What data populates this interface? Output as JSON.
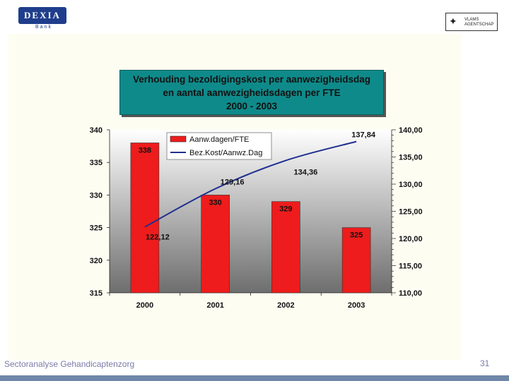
{
  "header": {
    "logo_left": "DEXIA",
    "logo_left_sub": "Bank",
    "logo_right_text": [
      "VLAMS",
      "AGENTSCHAP"
    ]
  },
  "title_lines": [
    "Verhouding bezoldigingskost per aanwezigheidsdag",
    "en aantal aanwezigheidsdagen per FTE",
    "2000 -  2003"
  ],
  "footer": {
    "text": "Sectoranalyse Gehandicaptenzorg",
    "page": "31"
  },
  "colors": {
    "bar": "#ee1c1c",
    "line": "#1f2f8f",
    "title_bg": "#0f8a8a",
    "plot_top": "#ffffff",
    "plot_bottom": "#6e6e6e"
  },
  "chart_data": {
    "type": "bar",
    "title": "Verhouding bezoldigingskost per aanwezigheidsdag en aantal aanwezigheidsdagen per FTE 2000 -  2003",
    "categories": [
      "2000",
      "2001",
      "2002",
      "2003"
    ],
    "series": [
      {
        "name": "Aanw.dagen/FTE",
        "type": "bar",
        "axis": "left",
        "values": [
          338,
          330,
          329,
          325
        ],
        "labels": [
          "338",
          "330",
          "329",
          "325"
        ]
      },
      {
        "name": "Bez.Kost/Aanwz.Dag",
        "type": "line",
        "axis": "right",
        "values": [
          122.12,
          129.16,
          134.36,
          137.84
        ],
        "labels": [
          "122,12",
          "129,16",
          "134,36",
          "137,84"
        ]
      }
    ],
    "y_left": {
      "min": 315,
      "max": 340,
      "ticks": [
        "315",
        "320",
        "325",
        "330",
        "335",
        "340"
      ]
    },
    "y_right": {
      "min": 110,
      "max": 140,
      "ticks": [
        "110,00",
        "115,00",
        "120,00",
        "125,00",
        "130,00",
        "135,00",
        "140,00"
      ]
    },
    "legend": "top-left"
  }
}
